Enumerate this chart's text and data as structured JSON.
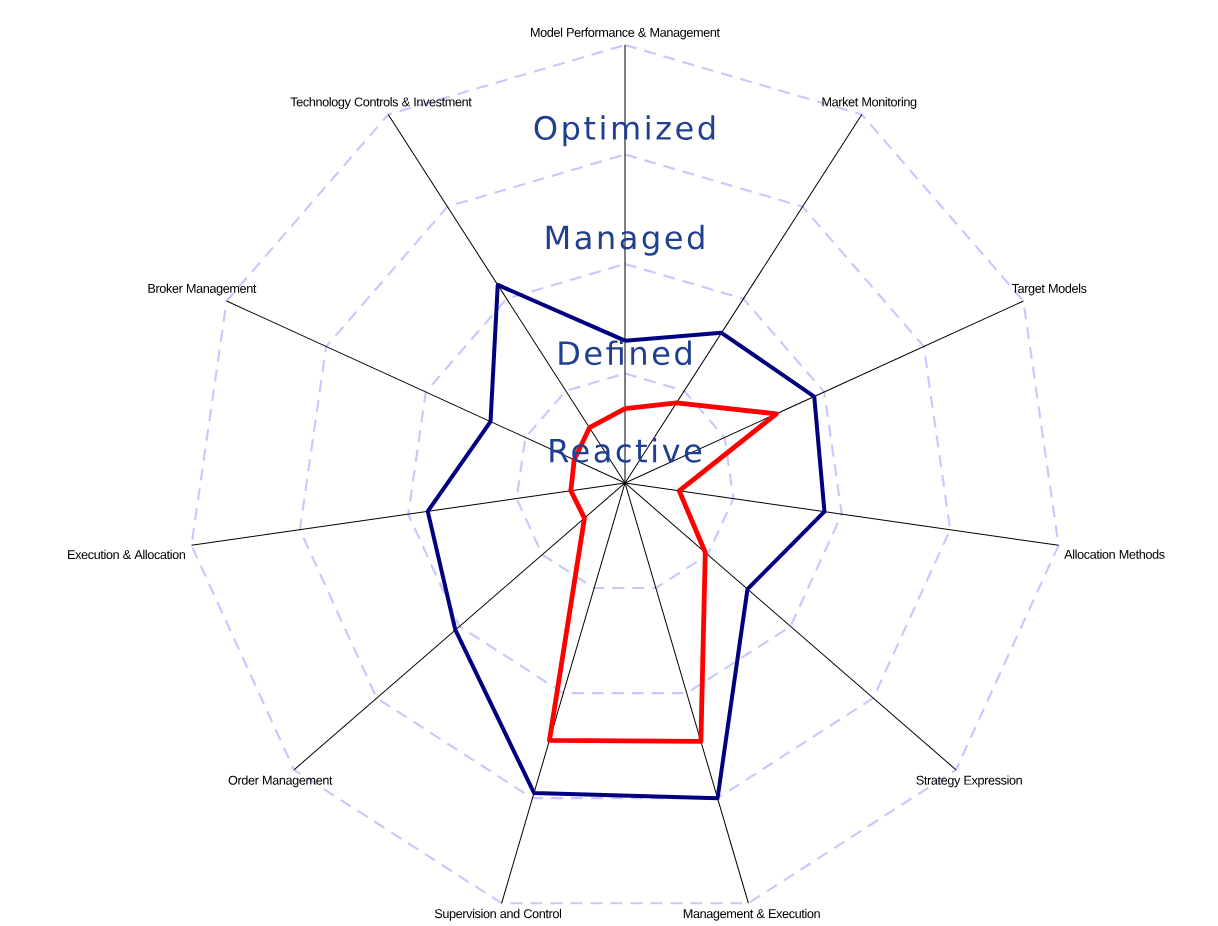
{
  "chart_data": {
    "type": "radar",
    "categories": [
      "Model Performance & Management",
      "Market Monitoring",
      "Target Models",
      "Allocation Methods",
      "Strategy Expression",
      "Management & Execution",
      "Supervision and Control",
      "Order Management",
      "Execution & Allocation",
      "Broker Management",
      "Technology Controls & Investment"
    ],
    "ylim": [
      0,
      4
    ],
    "yticks": [
      {
        "value": 0,
        "label": "Reactive"
      },
      {
        "value": 1,
        "label": "Defined"
      },
      {
        "value": 2,
        "label": "Managed"
      },
      {
        "value": 3,
        "label": "Optimized"
      }
    ],
    "grid": true,
    "series": [
      {
        "color": "#000080",
        "values": [
          1.3,
          1.63,
          1.9,
          1.84,
          1.48,
          3.0,
          2.95,
          2.05,
          1.82,
          1.35,
          2.15
        ]
      },
      {
        "color": "#ff0000",
        "values": [
          0.68,
          0.87,
          1.52,
          0.5,
          0.97,
          2.46,
          2.45,
          0.49,
          0.5,
          0.51,
          0.6
        ]
      }
    ]
  }
}
